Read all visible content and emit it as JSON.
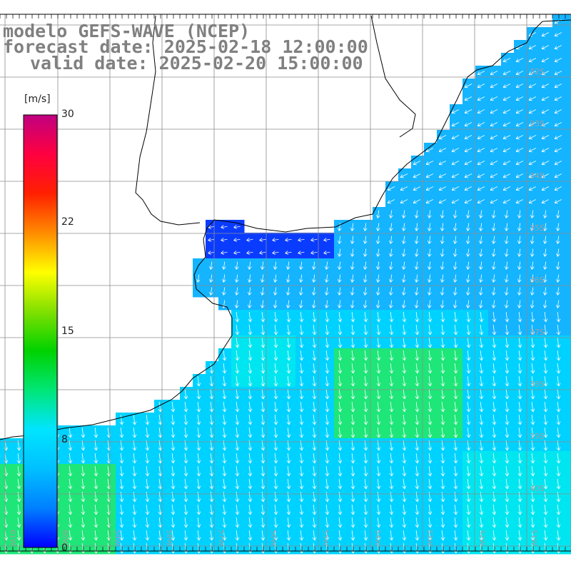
{
  "title": {
    "model": "modelo GEFS-WAVE (NCEP)",
    "forecast": "forecast date: 2025-02-18 12:00:00",
    "valid": "valid date: 2025-02-20 15:00:00"
  },
  "colorbar": {
    "unit": "[m/s]",
    "min": 0,
    "max": 30,
    "ticks": [
      "30",
      "22",
      "15",
      "8",
      "0"
    ],
    "colors": [
      "#0000ff",
      "#0080ff",
      "#00c0ff",
      "#00e5ff",
      "#00e676",
      "#00d200",
      "#80e000",
      "#ffff00",
      "#ff8c00",
      "#ff2000",
      "#ff0040",
      "#c00080"
    ]
  },
  "axes": {
    "lat_labels": [
      "32S",
      "33S",
      "34S",
      "35S",
      "36S",
      "37S",
      "38S",
      "39S",
      "40S"
    ],
    "lon_labels": [
      "61W",
      "60W",
      "59W",
      "58W",
      "57W",
      "56W",
      "55W",
      "54W",
      "53W",
      "52W",
      "51W"
    ]
  },
  "field": {
    "variable": "wind speed",
    "colors": {
      "deep_blue": "#0a3cff",
      "blue": "#1a8cff",
      "sky": "#14b4ff",
      "cyan": "#00d2ff",
      "aqua": "#00e6f0",
      "green": "#1ee678",
      "land": "#ffffff",
      "coast": "#000000",
      "grid": "#8c8c8c"
    }
  }
}
